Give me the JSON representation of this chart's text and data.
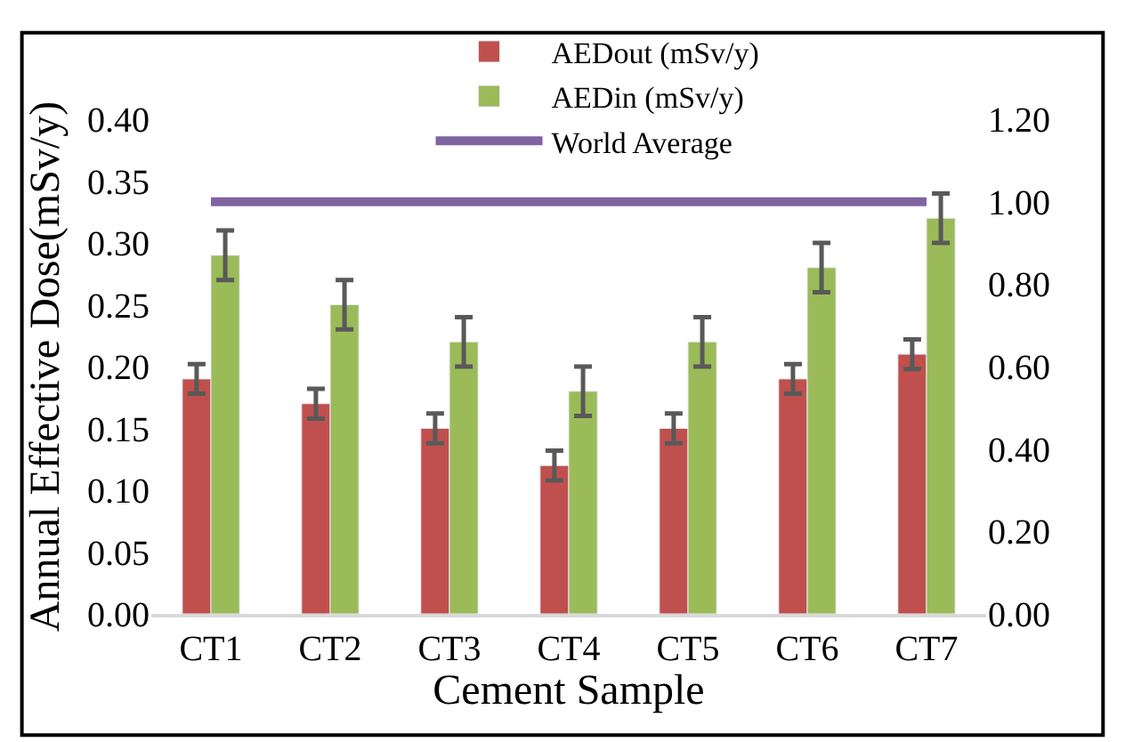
{
  "chart_data": {
    "type": "bar",
    "xlabel": "Cement Sample",
    "ylabel": "Annual Effective Dose(mSv/y)",
    "categories": [
      "CT1",
      "CT2",
      "CT3",
      "CT4",
      "CT5",
      "CT6",
      "CT7"
    ],
    "series": [
      {
        "name": "AEDout (mSv/y)",
        "color": "#c0504d",
        "values": [
          0.19,
          0.17,
          0.15,
          0.12,
          0.15,
          0.19,
          0.21
        ],
        "errors": [
          0.012,
          0.012,
          0.012,
          0.012,
          0.012,
          0.012,
          0.012
        ]
      },
      {
        "name": "AEDin (mSv/y)",
        "color": "#9bbb59",
        "values": [
          0.29,
          0.25,
          0.22,
          0.18,
          0.22,
          0.28,
          0.32
        ],
        "errors": [
          0.02,
          0.02,
          0.02,
          0.02,
          0.02,
          0.02,
          0.02
        ]
      },
      {
        "name": "World Average",
        "type": "line",
        "axis": "y2",
        "color": "#8064a2",
        "values": [
          1.0,
          1.0,
          1.0,
          1.0,
          1.0,
          1.0,
          1.0
        ]
      }
    ],
    "ylim": [
      0,
      0.4
    ],
    "yticks": [
      {
        "value": 0,
        "label": "0.00"
      },
      {
        "value": 0.05,
        "label": "0.05"
      },
      {
        "value": 0.1,
        "label": "0.10"
      },
      {
        "value": 0.15,
        "label": "0.15"
      },
      {
        "value": 0.2,
        "label": "0.20"
      },
      {
        "value": 0.25,
        "label": "0.25"
      },
      {
        "value": 0.3,
        "label": "0.30"
      },
      {
        "value": 0.35,
        "label": "0.35"
      },
      {
        "value": 0.4,
        "label": "0.40"
      }
    ],
    "y2lim": [
      0,
      1.2
    ],
    "y2ticks": [
      {
        "value": 0,
        "label": "0.00"
      },
      {
        "value": 0.2,
        "label": "0.20"
      },
      {
        "value": 0.4,
        "label": "0.40"
      },
      {
        "value": 0.6,
        "label": "0.60"
      },
      {
        "value": 0.8,
        "label": "0.80"
      },
      {
        "value": 1.0,
        "label": "1.00"
      },
      {
        "value": 1.2,
        "label": "1.20"
      }
    ],
    "legend": "top",
    "marker": "none",
    "line_style": "solid"
  }
}
